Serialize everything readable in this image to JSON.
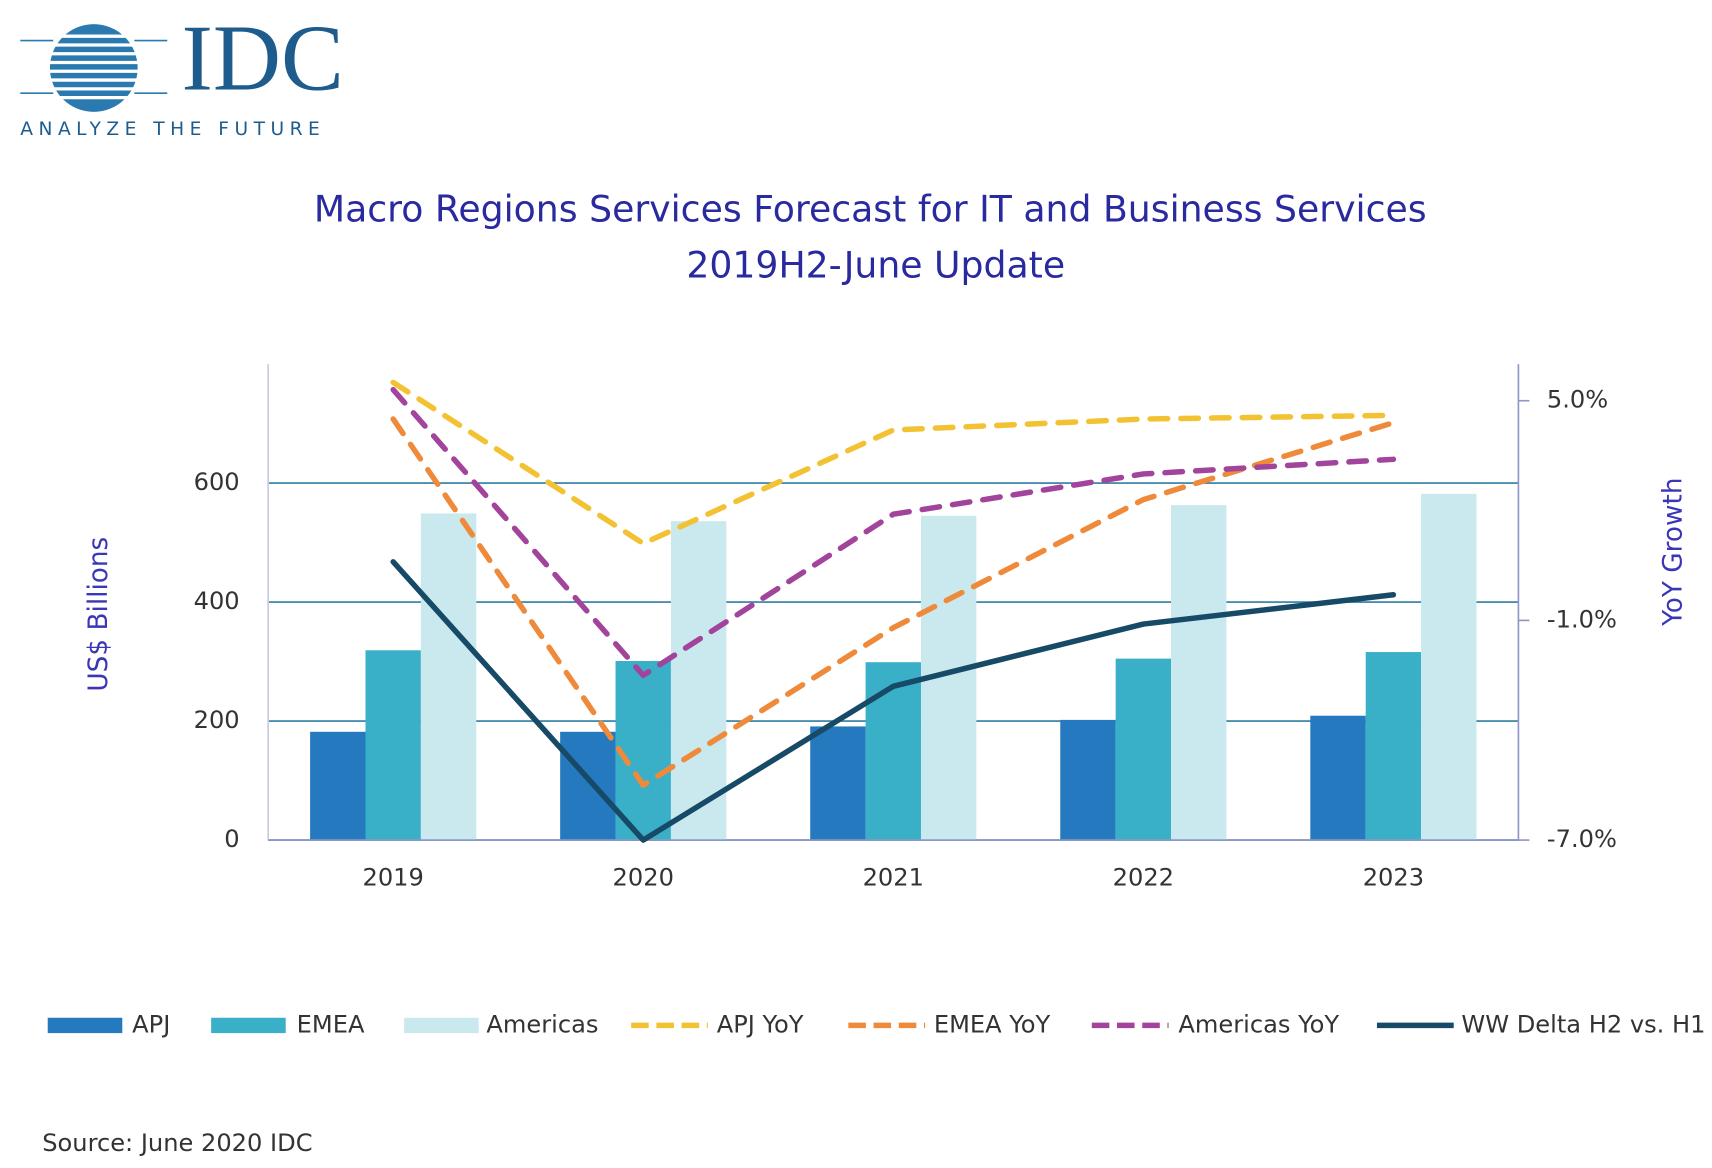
{
  "logo": {
    "name": "IDC",
    "tagline": "ANALYZE THE FUTURE"
  },
  "chart_data": {
    "type": "bar_line",
    "title": "Macro Regions Services Forecast for IT and Business Services",
    "subtitle": "2019H2-June  Update",
    "y_label": "US$ Billions",
    "y2_label": "YoY Growth",
    "categories": [
      "2019",
      "2020",
      "2021",
      "2022",
      "2023"
    ],
    "ylim": [
      0,
      800
    ],
    "yticks": [
      0,
      200,
      400,
      600
    ],
    "y2lim": [
      -7,
      6
    ],
    "y2ticks": [
      {
        "value": -7,
        "label": "-7.0%"
      },
      {
        "value": -1,
        "label": "-1.0%"
      },
      {
        "value": 5,
        "label": "5.0%"
      }
    ],
    "grid": true,
    "legend": "bottom",
    "series": [
      {
        "name": "APJ",
        "type": "bar",
        "color": "#2479bf",
        "values": [
          182,
          182,
          191,
          202,
          209
        ]
      },
      {
        "name": "EMEA",
        "type": "bar",
        "color": "#39afc8",
        "values": [
          319,
          301,
          299,
          305,
          316
        ]
      },
      {
        "name": "Americas",
        "type": "bar",
        "color": "#c9e9ef",
        "values": [
          549,
          536,
          545,
          563,
          582
        ]
      },
      {
        "name": "APJ YoY",
        "type": "line",
        "dashed": true,
        "axis": "y2",
        "color": "#f2c232",
        "values": [
          5.5,
          1.1,
          4.2,
          4.5,
          4.6
        ]
      },
      {
        "name": "EMEA YoY",
        "type": "line",
        "dashed": true,
        "axis": "y2",
        "color": "#ee8a3a",
        "values": [
          4.5,
          -5.5,
          -1.2,
          2.3,
          4.4
        ]
      },
      {
        "name": "Americas YoY",
        "type": "line",
        "dashed": true,
        "axis": "y2",
        "color": "#a2449b",
        "values": [
          5.3,
          -2.5,
          1.9,
          3.0,
          3.4
        ]
      },
      {
        "name": "WW Delta H2 vs. H1",
        "type": "line",
        "dashed": false,
        "axis": "y2",
        "color": "#174a66",
        "values": [
          0.6,
          -7.0,
          -2.8,
          -1.1,
          -0.3
        ]
      }
    ],
    "source": "Source: June 2020 IDC"
  }
}
